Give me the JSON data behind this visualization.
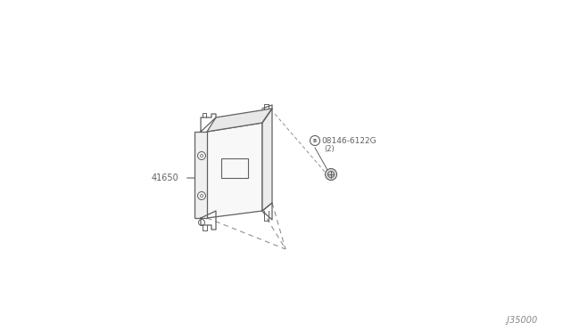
{
  "bg_color": "#ffffff",
  "part_number_main": "41650",
  "part_number_screw": "08146-6122G",
  "part_number_screw_qty": "(2)",
  "watermark": ".J35000",
  "line_color": "#606060",
  "dash_color": "#909090"
}
